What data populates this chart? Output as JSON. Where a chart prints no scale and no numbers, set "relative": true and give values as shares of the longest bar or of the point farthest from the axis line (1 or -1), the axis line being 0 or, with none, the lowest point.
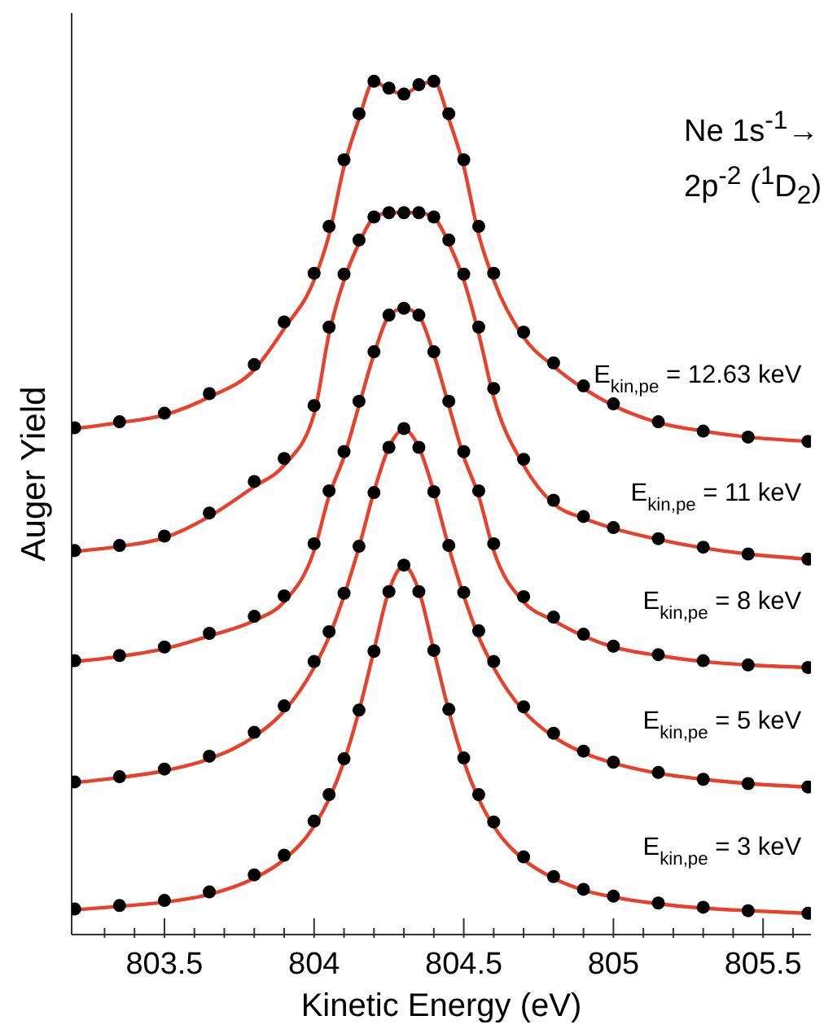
{
  "chart_data": {
    "type": "scatter",
    "relative": true,
    "xlabel": "Kinetic Energy (eV)",
    "ylabel": "Auger Yield",
    "annotations": [
      "Ne 1s$^{-1}$→",
      "2p$^{-2}$ ($^{1}$D$_{2}$)"
    ],
    "xlim": [
      803.19,
      805.66
    ],
    "xticks": [
      {
        "value": 803.3,
        "label": null
      },
      {
        "value": 803.4,
        "label": null
      },
      803.5,
      {
        "value": 803.6,
        "label": null
      },
      {
        "value": 803.7,
        "label": null
      },
      {
        "value": 803.8,
        "label": null
      },
      {
        "value": 803.9,
        "label": null
      },
      804,
      {
        "value": 804.1,
        "label": null
      },
      {
        "value": 804.2,
        "label": null
      },
      {
        "value": 804.3,
        "label": null
      },
      {
        "value": 804.4,
        "label": null
      },
      804.5,
      {
        "value": 804.6,
        "label": null
      },
      {
        "value": 804.7,
        "label": null
      },
      {
        "value": 804.8,
        "label": null
      },
      {
        "value": 804.9,
        "label": null
      },
      805,
      {
        "value": 805.1,
        "label": null
      },
      {
        "value": 805.2,
        "label": null
      },
      {
        "value": 805.3,
        "label": null
      },
      {
        "value": 805.4,
        "label": null
      },
      805.5,
      {
        "value": 805.6,
        "label": null
      }
    ],
    "x": [
      803.2,
      803.35,
      803.5,
      803.65,
      803.8,
      803.9,
      804.0,
      804.05,
      804.1,
      804.15,
      804.2,
      804.25,
      804.3,
      804.35,
      804.4,
      804.45,
      804.5,
      804.55,
      804.6,
      804.7,
      804.8,
      804.9,
      805.0,
      805.15,
      805.3,
      805.45,
      805.65
    ],
    "series": [
      {
        "type": "scatter",
        "marker": "circle",
        "name": "E$_{kin,pe}$ = 12.63 keV",
        "color": "#000000",
        "values": [
          0.594,
          0.601,
          0.611,
          0.634,
          0.668,
          0.718,
          0.775,
          0.83,
          0.908,
          0.962,
          1.0,
          0.992,
          0.985,
          0.996,
          1.0,
          0.962,
          0.908,
          0.83,
          0.775,
          0.706,
          0.67,
          0.643,
          0.622,
          0.601,
          0.59,
          0.583,
          0.578
        ]
      },
      {
        "type": "line",
        "marker": "none",
        "color": "#e8402a",
        "values": [
          0.593,
          0.6,
          0.609,
          0.63,
          0.662,
          0.71,
          0.767,
          0.82,
          0.9,
          0.956,
          1.0,
          0.99,
          0.985,
          0.995,
          1.0,
          0.956,
          0.9,
          0.82,
          0.767,
          0.7,
          0.666,
          0.64,
          0.62,
          0.6,
          0.59,
          0.583,
          0.578
        ]
      },
      {
        "type": "scatter",
        "marker": "circle",
        "name": "E$_{kin,pe}$ = 11 keV",
        "color": "#000000",
        "values": [
          0.45,
          0.456,
          0.467,
          0.494,
          0.531,
          0.558,
          0.62,
          0.712,
          0.774,
          0.814,
          0.841,
          0.846,
          0.846,
          0.846,
          0.841,
          0.814,
          0.774,
          0.712,
          0.64,
          0.557,
          0.509,
          0.49,
          0.477,
          0.464,
          0.454,
          0.446,
          0.44
        ]
      },
      {
        "type": "line",
        "marker": "none",
        "color": "#e8402a",
        "values": [
          0.449,
          0.455,
          0.465,
          0.49,
          0.525,
          0.55,
          0.61,
          0.704,
          0.767,
          0.81,
          0.84,
          0.846,
          0.846,
          0.846,
          0.84,
          0.81,
          0.767,
          0.704,
          0.63,
          0.55,
          0.505,
          0.488,
          0.476,
          0.463,
          0.453,
          0.446,
          0.44
        ]
      },
      {
        "type": "scatter",
        "marker": "circle",
        "name": "E$_{kin,pe}$ = 8 keV",
        "color": "#000000",
        "values": [
          0.321,
          0.327,
          0.337,
          0.353,
          0.373,
          0.397,
          0.458,
          0.52,
          0.566,
          0.625,
          0.683,
          0.726,
          0.734,
          0.726,
          0.683,
          0.625,
          0.566,
          0.52,
          0.458,
          0.396,
          0.372,
          0.352,
          0.338,
          0.328,
          0.321,
          0.316,
          0.313
        ]
      },
      {
        "type": "line",
        "marker": "none",
        "color": "#e8402a",
        "values": [
          0.32,
          0.326,
          0.335,
          0.35,
          0.368,
          0.39,
          0.45,
          0.514,
          0.56,
          0.62,
          0.68,
          0.725,
          0.734,
          0.725,
          0.68,
          0.62,
          0.56,
          0.514,
          0.45,
          0.39,
          0.368,
          0.35,
          0.337,
          0.327,
          0.32,
          0.316,
          0.313
        ]
      },
      {
        "type": "scatter",
        "marker": "circle",
        "name": "E$_{kin,pe}$ = 5 keV",
        "color": "#000000",
        "values": [
          0.179,
          0.185,
          0.194,
          0.209,
          0.237,
          0.268,
          0.32,
          0.355,
          0.4,
          0.455,
          0.518,
          0.571,
          0.593,
          0.571,
          0.519,
          0.456,
          0.401,
          0.356,
          0.32,
          0.267,
          0.236,
          0.215,
          0.202,
          0.19,
          0.182,
          0.177,
          0.173
        ]
      },
      {
        "type": "line",
        "marker": "none",
        "color": "#e8402a",
        "values": [
          0.178,
          0.184,
          0.192,
          0.206,
          0.232,
          0.262,
          0.313,
          0.349,
          0.397,
          0.454,
          0.519,
          0.571,
          0.592,
          0.571,
          0.519,
          0.454,
          0.397,
          0.349,
          0.313,
          0.262,
          0.232,
          0.213,
          0.201,
          0.189,
          0.182,
          0.177,
          0.173
        ]
      },
      {
        "type": "scatter",
        "marker": "circle",
        "name": "E$_{kin,pe}$ = 3 keV",
        "color": "#000000",
        "values": [
          0.03,
          0.034,
          0.04,
          0.05,
          0.07,
          0.093,
          0.133,
          0.164,
          0.206,
          0.263,
          0.332,
          0.402,
          0.433,
          0.402,
          0.333,
          0.264,
          0.207,
          0.164,
          0.132,
          0.091,
          0.068,
          0.053,
          0.045,
          0.037,
          0.032,
          0.028,
          0.025
        ]
      },
      {
        "type": "line",
        "marker": "none",
        "color": "#e8402a",
        "values": [
          0.029,
          0.033,
          0.038,
          0.047,
          0.066,
          0.088,
          0.127,
          0.159,
          0.203,
          0.262,
          0.333,
          0.403,
          0.432,
          0.403,
          0.333,
          0.262,
          0.203,
          0.159,
          0.127,
          0.088,
          0.066,
          0.052,
          0.044,
          0.036,
          0.031,
          0.028,
          0.025
        ]
      }
    ]
  }
}
